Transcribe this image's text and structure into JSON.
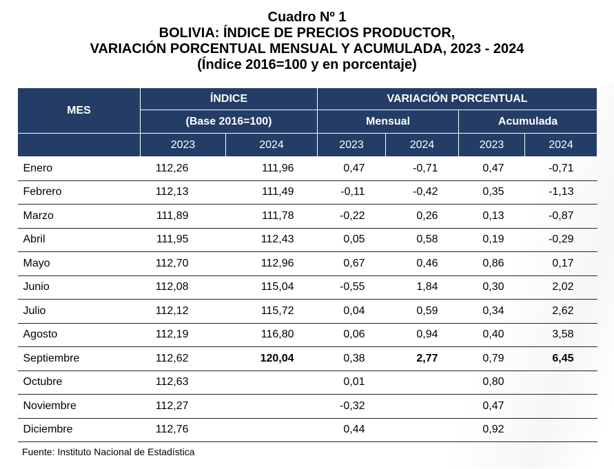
{
  "title": {
    "line1": "Cuadro Nº 1",
    "line2": "BOLIVIA: ÍNDICE DE PRECIOS PRODUCTOR,",
    "line3": "VARIACIÓN PORCENTUAL MENSUAL Y ACUMULADA, 2023 - 2024",
    "line4": "(Índice 2016=100 y en porcentaje)"
  },
  "header": {
    "mes": "MES",
    "indice": "ÍNDICE",
    "base": "(Base 2016=100)",
    "variacion": "VARIACIÓN PORCENTUAL",
    "mensual": "Mensual",
    "acumulada": "Acumulada",
    "years": [
      "2023",
      "2024",
      "2023",
      "2024",
      "2023",
      "2024"
    ]
  },
  "rows": [
    {
      "mes": "Enero",
      "v": [
        "112,26",
        "111,96",
        "0,47",
        "-0,71",
        "0,47",
        "-0,71"
      ]
    },
    {
      "mes": "Febrero",
      "v": [
        "112,13",
        "111,49",
        "-0,11",
        "-0,42",
        "0,35",
        "-1,13"
      ]
    },
    {
      "mes": "Marzo",
      "v": [
        "111,89",
        "111,78",
        "-0,22",
        "0,26",
        "0,13",
        "-0,87"
      ]
    },
    {
      "mes": "Abril",
      "v": [
        "111,95",
        "112,43",
        "0,05",
        "0,58",
        "0,19",
        "-0,29"
      ]
    },
    {
      "mes": "Mayo",
      "v": [
        "112,70",
        "112,96",
        "0,67",
        "0,46",
        "0,86",
        "0,17"
      ]
    },
    {
      "mes": "Junio",
      "v": [
        "112,08",
        "115,04",
        "-0,55",
        "1,84",
        "0,30",
        "2,02"
      ]
    },
    {
      "mes": "Julio",
      "v": [
        "112,12",
        "115,72",
        "0,04",
        "0,59",
        "0,34",
        "2,62"
      ]
    },
    {
      "mes": "Agosto",
      "v": [
        "112,19",
        "116,80",
        "0,06",
        "0,94",
        "0,40",
        "3,58"
      ]
    },
    {
      "mes": "Septiembre",
      "v": [
        "112,62",
        "120,04",
        "0,38",
        "2,77",
        "0,79",
        "6,45"
      ]
    },
    {
      "mes": "Octubre",
      "v": [
        "112,63",
        "",
        "0,01",
        "",
        "0,80",
        ""
      ]
    },
    {
      "mes": "Noviembre",
      "v": [
        "112,27",
        "",
        "-0,32",
        "",
        "0,47",
        ""
      ]
    },
    {
      "mes": "Diciembre",
      "v": [
        "112,76",
        "",
        "0,44",
        "",
        "0,92",
        ""
      ]
    }
  ],
  "footer": {
    "fuente": "Fuente: Instituto Nacional de Estadística"
  },
  "colors": {
    "header_bg": "#233d66",
    "header_text": "#ffffff"
  }
}
